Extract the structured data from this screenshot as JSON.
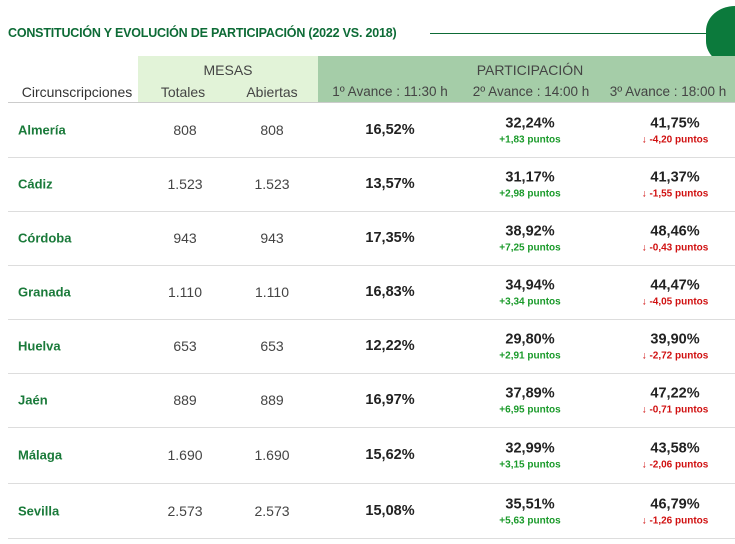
{
  "title": "CONSTITUCIÓN Y EVOLUCIÓN DE PARTICIPACIÓN (2022 VS. 2018)",
  "headers": {
    "mesas": "MESAS",
    "participacion": "PARTICIPACIÓN",
    "circ": "Circunscripciones",
    "totales": "Totales",
    "abiertas": "Abiertas",
    "a1": "1º Avance : 11:30 h",
    "a2": "2º Avance : 14:00 h",
    "a3": "3º Avance : 18:00 h"
  },
  "colors": {
    "up": "#1a9a2a",
    "down": "#d01010",
    "accent": "#0d6b36"
  },
  "rows": [
    {
      "name": "Almería",
      "totales": "808",
      "abiertas": "808",
      "a1": "16,52%",
      "a2": "32,24%",
      "a2d": "+1,83 puntos",
      "a3": "41,75%",
      "a3d": "-4,20 puntos"
    },
    {
      "name": "Cádiz",
      "totales": "1.523",
      "abiertas": "1.523",
      "a1": "13,57%",
      "a2": "31,17%",
      "a2d": "+2,98 puntos",
      "a3": "41,37%",
      "a3d": "-1,55 puntos"
    },
    {
      "name": "Córdoba",
      "totales": "943",
      "abiertas": "943",
      "a1": "17,35%",
      "a2": "38,92%",
      "a2d": "+7,25 puntos",
      "a3": "48,46%",
      "a3d": "-0,43 puntos"
    },
    {
      "name": "Granada",
      "totales": "1.110",
      "abiertas": "1.110",
      "a1": "16,83%",
      "a2": "34,94%",
      "a2d": "+3,34 puntos",
      "a3": "44,47%",
      "a3d": "-4,05 puntos"
    },
    {
      "name": "Huelva",
      "totales": "653",
      "abiertas": "653",
      "a1": "12,22%",
      "a2": "29,80%",
      "a2d": "+2,91 puntos",
      "a3": "39,90%",
      "a3d": "-2,72 puntos"
    },
    {
      "name": "Jaén",
      "totales": "889",
      "abiertas": "889",
      "a1": "16,97%",
      "a2": "37,89%",
      "a2d": "+6,95 puntos",
      "a3": "47,22%",
      "a3d": "-0,71 puntos"
    },
    {
      "name": "Málaga",
      "totales": "1.690",
      "abiertas": "1.690",
      "a1": "15,62%",
      "a2": "32,99%",
      "a2d": "+3,15 puntos",
      "a3": "43,58%",
      "a3d": "-2,06 puntos"
    },
    {
      "name": "Sevilla",
      "totales": "2.573",
      "abiertas": "2.573",
      "a1": "15,08%",
      "a2": "35,51%",
      "a2d": "+5,63 puntos",
      "a3": "46,79%",
      "a3d": "-1,26 puntos"
    }
  ]
}
